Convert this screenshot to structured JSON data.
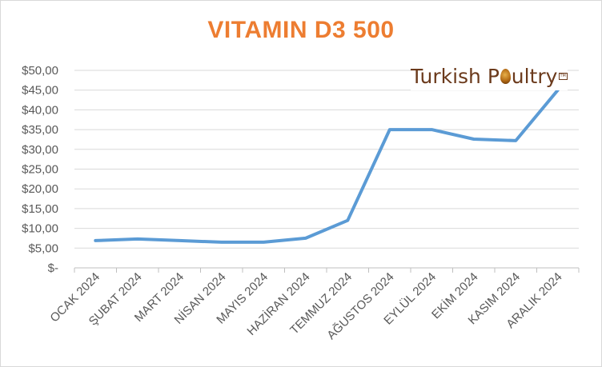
{
  "chart_data": {
    "type": "line",
    "title": "VITAMIN D3 500",
    "categories": [
      "OCAK 2024",
      "ŞUBAT 2024",
      "MART 2024",
      "NİSAN 2024",
      "MAYIS 2024",
      "HAZİRAN 2024",
      "TEMMUZ 2024",
      "AĞUSTOS 2024",
      "EYLÜL 2024",
      "EKİM 2024",
      "KASIM 2024",
      "ARALIK 2024"
    ],
    "series": [
      {
        "values": [
          6.9,
          7.3,
          6.9,
          6.5,
          6.5,
          7.5,
          12.0,
          35.0,
          35.0,
          32.6,
          32.2,
          45.0
        ]
      }
    ],
    "ylim": [
      0,
      50
    ],
    "yticks": [
      0,
      5,
      10,
      15,
      20,
      25,
      30,
      35,
      40,
      45,
      50
    ],
    "ytick_labels": [
      "$-",
      "$5,00",
      "$10,00",
      "$15,00",
      "$20,00",
      "$25,00",
      "$30,00",
      "$35,00",
      "$40,00",
      "$45,00",
      "$50,00"
    ],
    "line_color": "#5b9bd5",
    "title_color": "#ed7d31",
    "grid": true,
    "legend": "none"
  },
  "logo": {
    "text_before": "Turkish P",
    "text_after": "ultry",
    "mark": "TM"
  }
}
